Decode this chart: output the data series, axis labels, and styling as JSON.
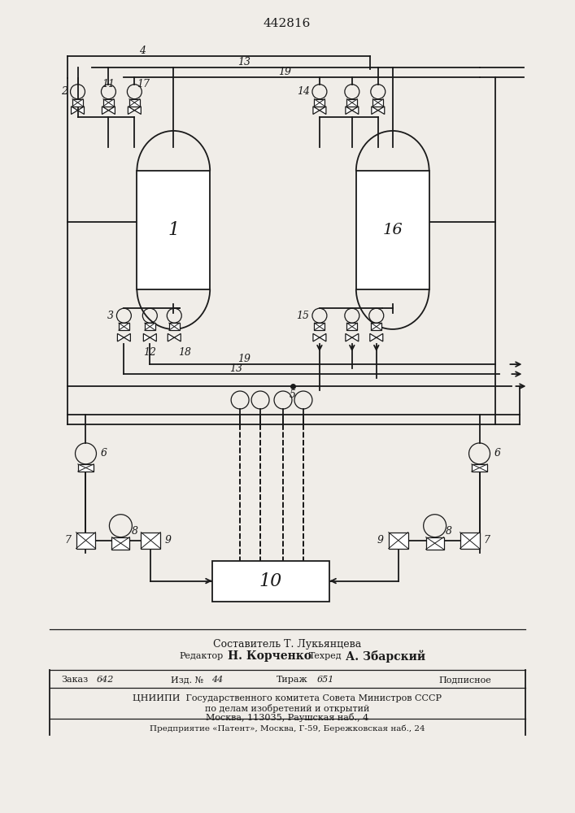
{
  "title": "442816",
  "bg_color": "#f0ede8",
  "line_color": "#1a1a1a",
  "fig_width": 7.07,
  "fig_height": 10.0,
  "dpi": 100,
  "footer_line1": "Составитель Т. Лукьянцева",
  "footer_line2_left": "Редактор",
  "footer_line2_name": "Н. Корченко",
  "footer_line2_mid": "Техред",
  "footer_line2_name2": "А. Збарский",
  "tbl_row1_c1": "Заказ",
  "tbl_row1_v1": "642",
  "tbl_row1_c2": "Изд. №",
  "tbl_row1_v2": "44",
  "tbl_row1_c3": "Тираж",
  "tbl_row1_v3": "651",
  "tbl_row1_c4": "Подписное",
  "tbl_row2": "ЦНИИПИ  Государственного комитета Совета Министров СССР",
  "tbl_row3": "по делам изобретений и открытий",
  "tbl_row4": "Москва, 113035, Раушская наб., 4",
  "tbl_row5": "Предприятие «Патент», Москва, Г-59, Бережковская наб., 24"
}
